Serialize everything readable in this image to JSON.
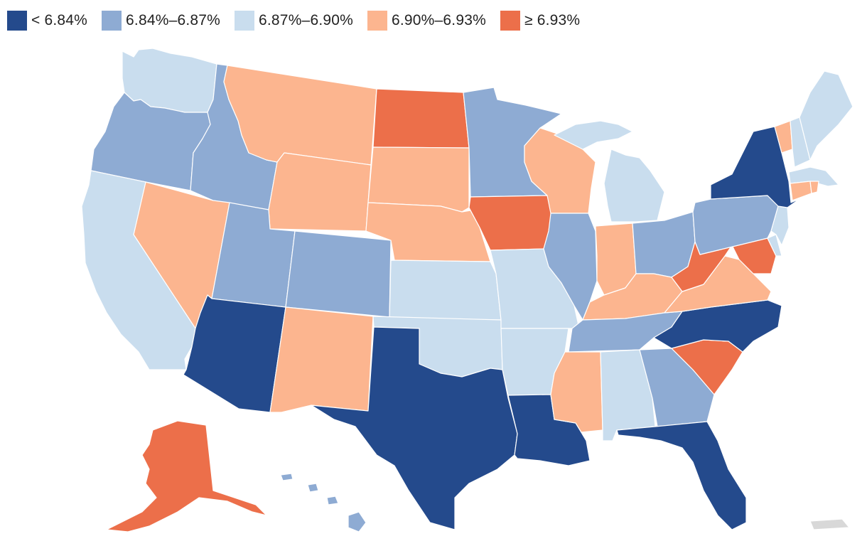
{
  "legend": {
    "items": [
      {
        "label": "< 6.84%",
        "color": "#244a8c"
      },
      {
        "label": "6.84%–6.87%",
        "color": "#8eabd3"
      },
      {
        "label": "6.87%–6.90%",
        "color": "#c9ddee"
      },
      {
        "label": "6.90%–6.93%",
        "color": "#fcb58f"
      },
      {
        "label": "≥ 6.93%",
        "color": "#ec6f4a"
      }
    ]
  },
  "states": {
    "WA": 2,
    "OR": 1,
    "CA": 2,
    "NV": 3,
    "ID": 1,
    "MT": 3,
    "WY": 3,
    "UT": 1,
    "AZ": 0,
    "CO": 1,
    "NM": 3,
    "ND": 4,
    "SD": 3,
    "NE": 3,
    "KS": 2,
    "OK": 2,
    "TX": 0,
    "MN": 1,
    "IA": 4,
    "MO": 2,
    "AR": 2,
    "LA": 0,
    "WI": 3,
    "IL": 1,
    "MI": 2,
    "IN": 3,
    "OH": 1,
    "KY": 3,
    "TN": 1,
    "MS": 3,
    "AL": 2,
    "GA": 1,
    "FL": 0,
    "SC": 4,
    "NC": 0,
    "VA": 3,
    "WV": 4,
    "MD": 4,
    "DE": 2,
    "PA": 1,
    "NJ": 2,
    "NY": 0,
    "CT": 3,
    "RI": 3,
    "MA": 2,
    "VT": 3,
    "NH": 2,
    "ME": 2,
    "AK": 4,
    "HI": 1,
    "PR": -1
  },
  "no_data_color": "#d8d8d8"
}
